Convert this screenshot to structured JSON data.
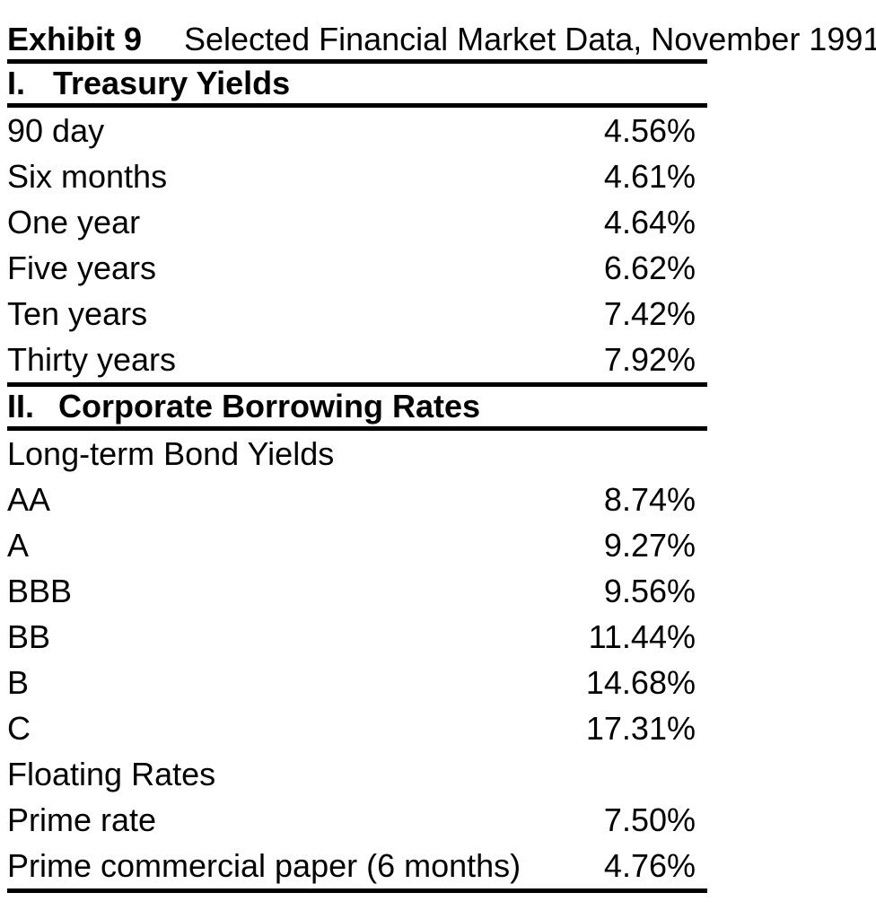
{
  "exhibit": {
    "label": "Exhibit 9",
    "title": "Selected Financial Market Data, November 1991",
    "colors": {
      "background": "#ffffff",
      "text": "#000000",
      "rule": "#000000"
    },
    "sections": [
      {
        "numeral": "I.",
        "heading": "Treasury Yields",
        "rows": [
          {
            "label": "90 day",
            "value": "4.56%"
          },
          {
            "label": "Six months",
            "value": "4.61%"
          },
          {
            "label": "One year",
            "value": "4.64%"
          },
          {
            "label": "Five years",
            "value": "6.62%"
          },
          {
            "label": "Ten years",
            "value": "7.42%"
          },
          {
            "label": "Thirty years",
            "value": "7.92%"
          }
        ]
      },
      {
        "numeral": "II.",
        "heading": "Corporate Borrowing Rates",
        "rows": [
          {
            "label": "Long-term Bond Yields",
            "value": ""
          },
          {
            "label": "AA",
            "value": "8.74%"
          },
          {
            "label": "A",
            "value": "9.27%"
          },
          {
            "label": "BBB",
            "value": "9.56%"
          },
          {
            "label": "BB",
            "value": "11.44%"
          },
          {
            "label": "B",
            "value": "14.68%"
          },
          {
            "label": "C",
            "value": "17.31%"
          },
          {
            "label": "Floating Rates",
            "value": ""
          },
          {
            "label": "Prime rate",
            "value": "7.50%"
          },
          {
            "label": "Prime commercial paper (6 months)",
            "value": "4.76%"
          }
        ]
      }
    ]
  }
}
